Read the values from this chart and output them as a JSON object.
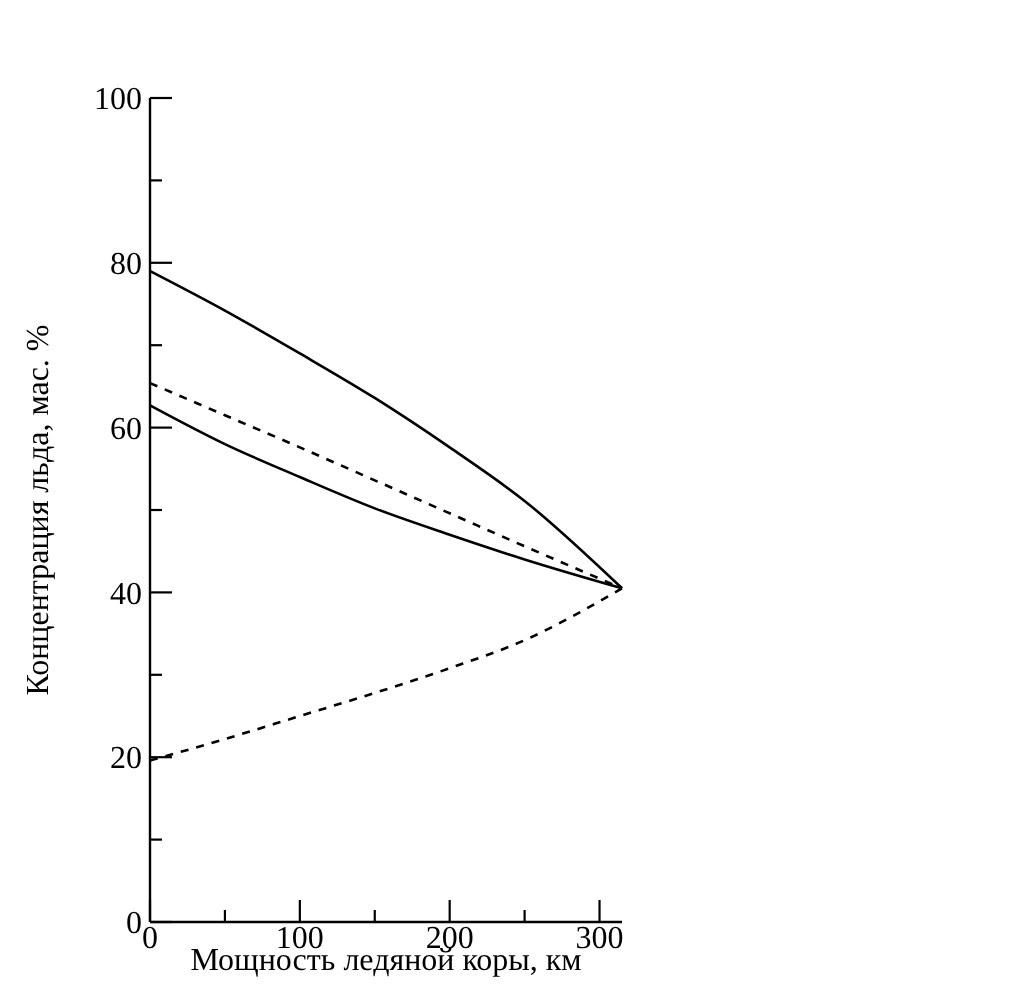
{
  "chart_data": {
    "type": "line",
    "xlabel": "Мощность ледяной коры, км",
    "ylabel": "Концентрация льда, мас. %",
    "x": [
      0,
      50,
      100,
      150,
      200,
      250,
      315
    ],
    "series": [
      {
        "color": "#000000",
        "line_style": "solid",
        "values": [
          79,
          74.2,
          69,
          63.6,
          57.6,
          51.1,
          40.5
        ]
      },
      {
        "color": "#000000",
        "line_style": "dashed",
        "values": [
          65.4,
          61.5,
          57.6,
          53.6,
          49.6,
          45.6,
          40.5
        ]
      },
      {
        "color": "#000000",
        "line_style": "solid",
        "values": [
          62.7,
          58,
          54,
          50.2,
          47,
          44,
          40.5
        ]
      },
      {
        "color": "#000000",
        "line_style": "dashed",
        "values": [
          19.6,
          22.2,
          25,
          27.8,
          30.8,
          34.2,
          40.5
        ]
      }
    ],
    "xlim": [
      0,
      315
    ],
    "ylim": [
      0,
      100
    ],
    "xticks": [
      0,
      {
        "value": 50,
        "label": null
      },
      100,
      {
        "value": 150,
        "label": null
      },
      200,
      {
        "value": 250,
        "label": null
      },
      300
    ],
    "yticks": [
      0,
      {
        "value": 10,
        "label": null
      },
      20,
      {
        "value": 30,
        "label": null
      },
      40,
      {
        "value": 50,
        "label": null
      },
      60,
      {
        "value": 70,
        "label": null
      },
      80,
      {
        "value": 90,
        "label": null
      },
      100
    ],
    "grid": false,
    "marker": "none"
  }
}
